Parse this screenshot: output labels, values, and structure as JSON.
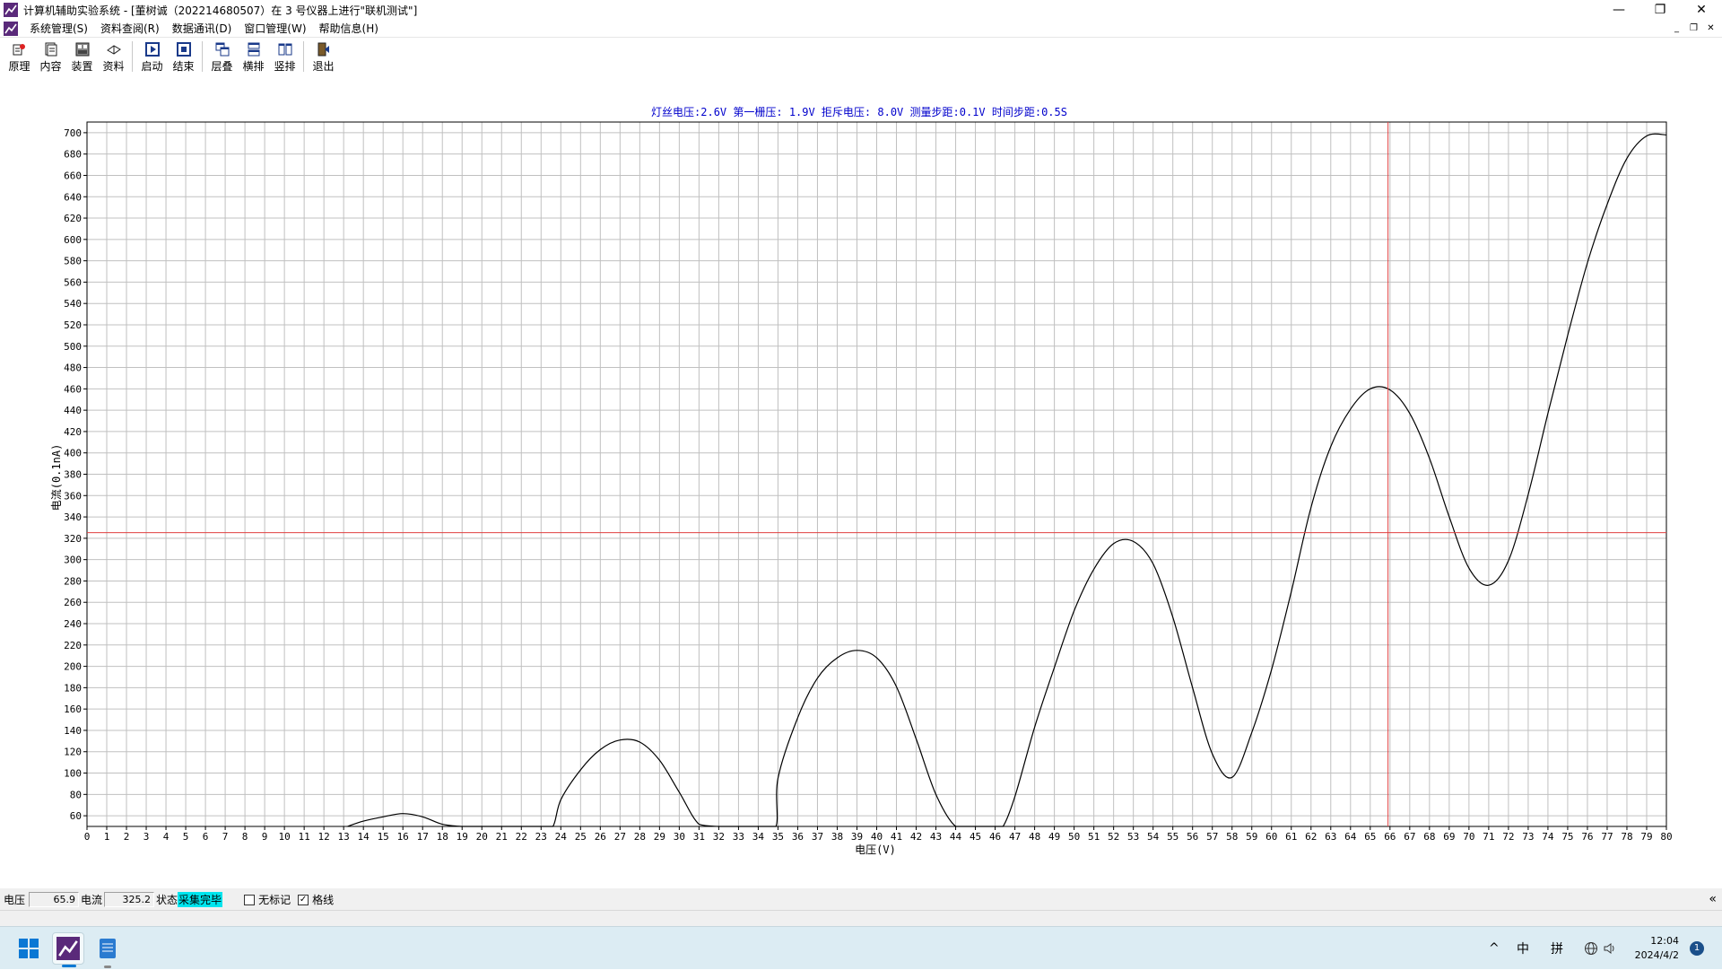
{
  "window": {
    "title": "计算机辅助实验系统 - [董树诚（202214680507）在 3 号仪器上进行\"联机测试\"]",
    "controls": {
      "minimize": "—",
      "maximize": "❐",
      "close": "✕"
    },
    "mdi_controls": {
      "minimize": "_",
      "restore": "❐",
      "close": "✕"
    }
  },
  "menu": [
    {
      "label": "系统管理(S)"
    },
    {
      "label": "资料查阅(R)"
    },
    {
      "label": "数据通讯(D)"
    },
    {
      "label": "窗口管理(W)"
    },
    {
      "label": "帮助信息(H)"
    }
  ],
  "toolbar": [
    {
      "label": "原理",
      "icon": "principle-icon"
    },
    {
      "label": "内容",
      "icon": "content-icon"
    },
    {
      "label": "装置",
      "icon": "device-icon"
    },
    {
      "label": "资料",
      "icon": "material-icon"
    },
    {
      "label": "启动",
      "icon": "start-icon"
    },
    {
      "label": "结束",
      "icon": "stop-icon"
    },
    {
      "label": "层叠",
      "icon": "cascade-icon"
    },
    {
      "label": "横排",
      "icon": "tile-horizontal-icon"
    },
    {
      "label": "竖排",
      "icon": "tile-vertical-icon"
    },
    {
      "label": "退出",
      "icon": "exit-icon"
    }
  ],
  "chart_data": {
    "type": "line",
    "title": "灯丝电压:2.6V  第一栅压: 1.9V  拒斥电压: 8.0V  测量步距:0.1V  时间步距:0.5S",
    "xlabel": "电压(V)",
    "ylabel": "电流(0.1nA)",
    "xlim": [
      0,
      80
    ],
    "ylim": [
      50,
      710
    ],
    "x_ticks": [
      0,
      1,
      2,
      3,
      4,
      5,
      6,
      7,
      8,
      9,
      10,
      11,
      12,
      13,
      14,
      15,
      16,
      17,
      18,
      19,
      20,
      21,
      22,
      23,
      24,
      25,
      26,
      27,
      28,
      29,
      30,
      31,
      32,
      33,
      34,
      35,
      36,
      37,
      38,
      39,
      40,
      41,
      42,
      43,
      44,
      45,
      46,
      47,
      48,
      49,
      50,
      51,
      52,
      53,
      54,
      55,
      56,
      57,
      58,
      59,
      60,
      61,
      62,
      63,
      64,
      65,
      66,
      67,
      68,
      69,
      70,
      71,
      72,
      73,
      74,
      75,
      76,
      77,
      78,
      79,
      80
    ],
    "y_ticks": [
      60,
      80,
      100,
      120,
      140,
      160,
      180,
      200,
      220,
      240,
      260,
      280,
      300,
      320,
      340,
      360,
      380,
      400,
      420,
      440,
      460,
      480,
      500,
      520,
      540,
      560,
      580,
      600,
      620,
      640,
      660,
      680,
      700
    ],
    "grid": true,
    "cursor": {
      "x": 65.9,
      "y": 325.2
    },
    "colors": {
      "curve": "#000000",
      "cursor": "#e04040",
      "grid": "#c0c0c0",
      "title": "#0000cc"
    },
    "series": [
      {
        "x": [
          13.2,
          14,
          15,
          16,
          17,
          18,
          19,
          20,
          21,
          22,
          23,
          23.6,
          24,
          25,
          26,
          27,
          28,
          29,
          30,
          31,
          32,
          33,
          34,
          34.9,
          35,
          36,
          37,
          38,
          39,
          40,
          41,
          42,
          43,
          44,
          45,
          46,
          46.4,
          47,
          48,
          49,
          50,
          51,
          52,
          53,
          54,
          55,
          56,
          57,
          58,
          59,
          60,
          61,
          62,
          63,
          64,
          65,
          66,
          67,
          68,
          69,
          70,
          71,
          72,
          73,
          74,
          75,
          76,
          77,
          78,
          79,
          80
        ],
        "y": [
          50,
          55,
          59,
          62,
          59,
          52,
          50,
          50,
          50,
          50,
          50,
          50,
          75,
          103,
          122,
          131,
          129,
          112,
          82,
          52,
          50,
          50,
          50,
          50,
          95,
          152,
          189,
          208,
          215,
          208,
          181,
          132,
          80,
          50,
          50,
          50,
          50,
          78,
          143,
          199,
          252,
          291,
          315,
          317,
          296,
          246,
          180,
          118,
          96,
          138,
          197,
          270,
          349,
          406,
          441,
          460,
          459,
          437,
          395,
          340,
          292,
          276,
          299,
          361,
          437,
          510,
          578,
          633,
          676,
          697,
          698
        ]
      }
    ]
  },
  "statusbar": {
    "voltage_label": "电压",
    "voltage_value": "65.9",
    "current_label": "电流",
    "current_value": "325.2",
    "status_label": "状态",
    "status_value": "采集完毕",
    "no_mark_label": "无标记",
    "no_mark_checked": false,
    "grid_label": "格线",
    "grid_checked": true,
    "collapse_glyph": "«"
  },
  "taskbar": {
    "tray_chevron": "^",
    "ime_mode": "中",
    "ime_pinyin": "拼",
    "time": "12:04",
    "date": "2024/4/2",
    "notification_count": "1"
  }
}
